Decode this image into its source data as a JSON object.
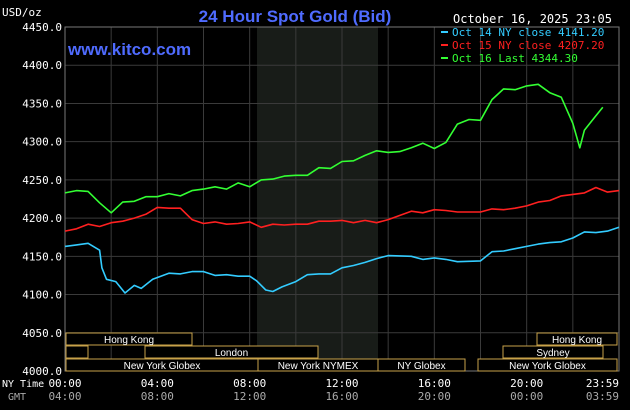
{
  "header": {
    "unit": "USD/oz",
    "title": "24 Hour Spot Gold (Bid)",
    "timestamp": "October 16, 2025 23:05",
    "watermark": "www.kitco.com"
  },
  "legend": [
    {
      "label": "Oct 14 NY close 4141.20",
      "color": "#33ccff"
    },
    {
      "label": "Oct 15 NY close 4207.20",
      "color": "#ff2020"
    },
    {
      "label": "Oct 16 Last 4344.30",
      "color": "#33ff33"
    }
  ],
  "sessions": {
    "row1": [
      "Hong Kong",
      "Hong Kong"
    ],
    "row2": [
      "London",
      "Sydney"
    ],
    "row3": [
      "New York Globex",
      "New York NYMEX",
      "NY Globex",
      "New York Globex"
    ]
  },
  "time_labels": {
    "row1_prefix": "NY Time",
    "row2_prefix": "GMT",
    "ny": [
      "00:00",
      "04:00",
      "08:00",
      "12:00",
      "16:00",
      "20:00",
      "23:59"
    ],
    "gmt": [
      "04:00",
      "08:00",
      "12:00",
      "16:00",
      "20:00",
      "00:00",
      "03:59"
    ]
  },
  "chart_data": {
    "type": "line",
    "title": "24 Hour Spot Gold (Bid)",
    "ylabel": "USD/oz",
    "ylim": [
      4000,
      4450
    ],
    "yticks": [
      "4450.0",
      "4400.0",
      "4350.0",
      "4300.0",
      "4250.0",
      "4200.0",
      "4150.0",
      "4100.0",
      "4050.0",
      "4000.0"
    ],
    "xlim": [
      0,
      24
    ],
    "grid": true,
    "legend_position": "top-right",
    "series": [
      {
        "name": "Oct 14 NY close 4141.20",
        "color": "#33ccff",
        "x": [
          0,
          0.5,
          1,
          1.5,
          1.6,
          1.8,
          2.2,
          2.6,
          3,
          3.3,
          3.8,
          4.5,
          5,
          5.5,
          6,
          6.5,
          7,
          7.5,
          8,
          8.3,
          8.7,
          9,
          9.4,
          10,
          10.5,
          11,
          11.5,
          12,
          12.5,
          13,
          13.5,
          14,
          15,
          15.5,
          16,
          16.5,
          17,
          18,
          18.5,
          19,
          19.5,
          20,
          20.5,
          21,
          21.5,
          22,
          22.5,
          23,
          23.5,
          24
        ],
        "values": [
          4163,
          4165,
          4167,
          4158,
          4135,
          4120,
          4117,
          4102,
          4112,
          4108,
          4120,
          4128,
          4127,
          4130,
          4130,
          4125,
          4126,
          4124,
          4124,
          4118,
          4106,
          4104,
          4110,
          4117,
          4126,
          4127,
          4127,
          4135,
          4138,
          4142,
          4147,
          4151,
          4150,
          4146,
          4148,
          4146,
          4143,
          4144,
          4156,
          4157,
          4160,
          4163,
          4166,
          4168,
          4169,
          4174,
          4182,
          4181,
          4183,
          4188
        ]
      },
      {
        "name": "Oct 15 NY close 4207.20",
        "color": "#ff2020",
        "x": [
          0,
          0.5,
          1,
          1.5,
          2,
          2.5,
          3,
          3.5,
          4,
          4.5,
          5,
          5.5,
          6,
          6.5,
          7,
          7.5,
          8,
          8.5,
          9,
          9.5,
          10,
          10.5,
          11,
          11.5,
          12,
          12.5,
          13,
          13.5,
          14,
          15,
          15.5,
          16,
          16.5,
          17,
          18,
          18.5,
          19,
          19.5,
          20,
          20.5,
          21,
          21.5,
          22,
          22.5,
          23,
          23.5,
          24
        ],
        "values": [
          4183,
          4186,
          4192,
          4189,
          4194,
          4196,
          4200,
          4205,
          4214,
          4213,
          4213,
          4198,
          4193,
          4195,
          4192,
          4193,
          4195,
          4188,
          4192,
          4191,
          4192,
          4192,
          4196,
          4196,
          4197,
          4194,
          4197,
          4194,
          4198,
          4209,
          4207,
          4211,
          4210,
          4208,
          4208,
          4212,
          4211,
          4213,
          4216,
          4221,
          4223,
          4229,
          4231,
          4233,
          4240,
          4234,
          4236
        ]
      },
      {
        "name": "Oct 16 Last 4344.30",
        "color": "#33ff33",
        "x": [
          0,
          0.5,
          1,
          1.5,
          2,
          2.5,
          3,
          3.5,
          4,
          4.5,
          5,
          5.5,
          6,
          6.5,
          7,
          7.5,
          8,
          8.5,
          9,
          9.5,
          10,
          10.5,
          11,
          11.5,
          12,
          12.5,
          13,
          13.5,
          14,
          14.5,
          15,
          15.5,
          16,
          16.5,
          17,
          17.5,
          18,
          18.5,
          19,
          19.5,
          20,
          20.5,
          21,
          21.5,
          22,
          22.3,
          22.5,
          23,
          23.3
        ],
        "values": [
          4233,
          4236,
          4235,
          4220,
          4207,
          4221,
          4222,
          4228,
          4228,
          4232,
          4229,
          4236,
          4238,
          4241,
          4238,
          4246,
          4241,
          4250,
          4251,
          4255,
          4256,
          4256,
          4266,
          4265,
          4274,
          4275,
          4282,
          4288,
          4286,
          4287,
          4292,
          4298,
          4291,
          4299,
          4323,
          4329,
          4328,
          4355,
          4369,
          4368,
          4373,
          4375,
          4364,
          4358,
          4324,
          4292,
          4315,
          4334,
          4345
        ]
      }
    ]
  }
}
